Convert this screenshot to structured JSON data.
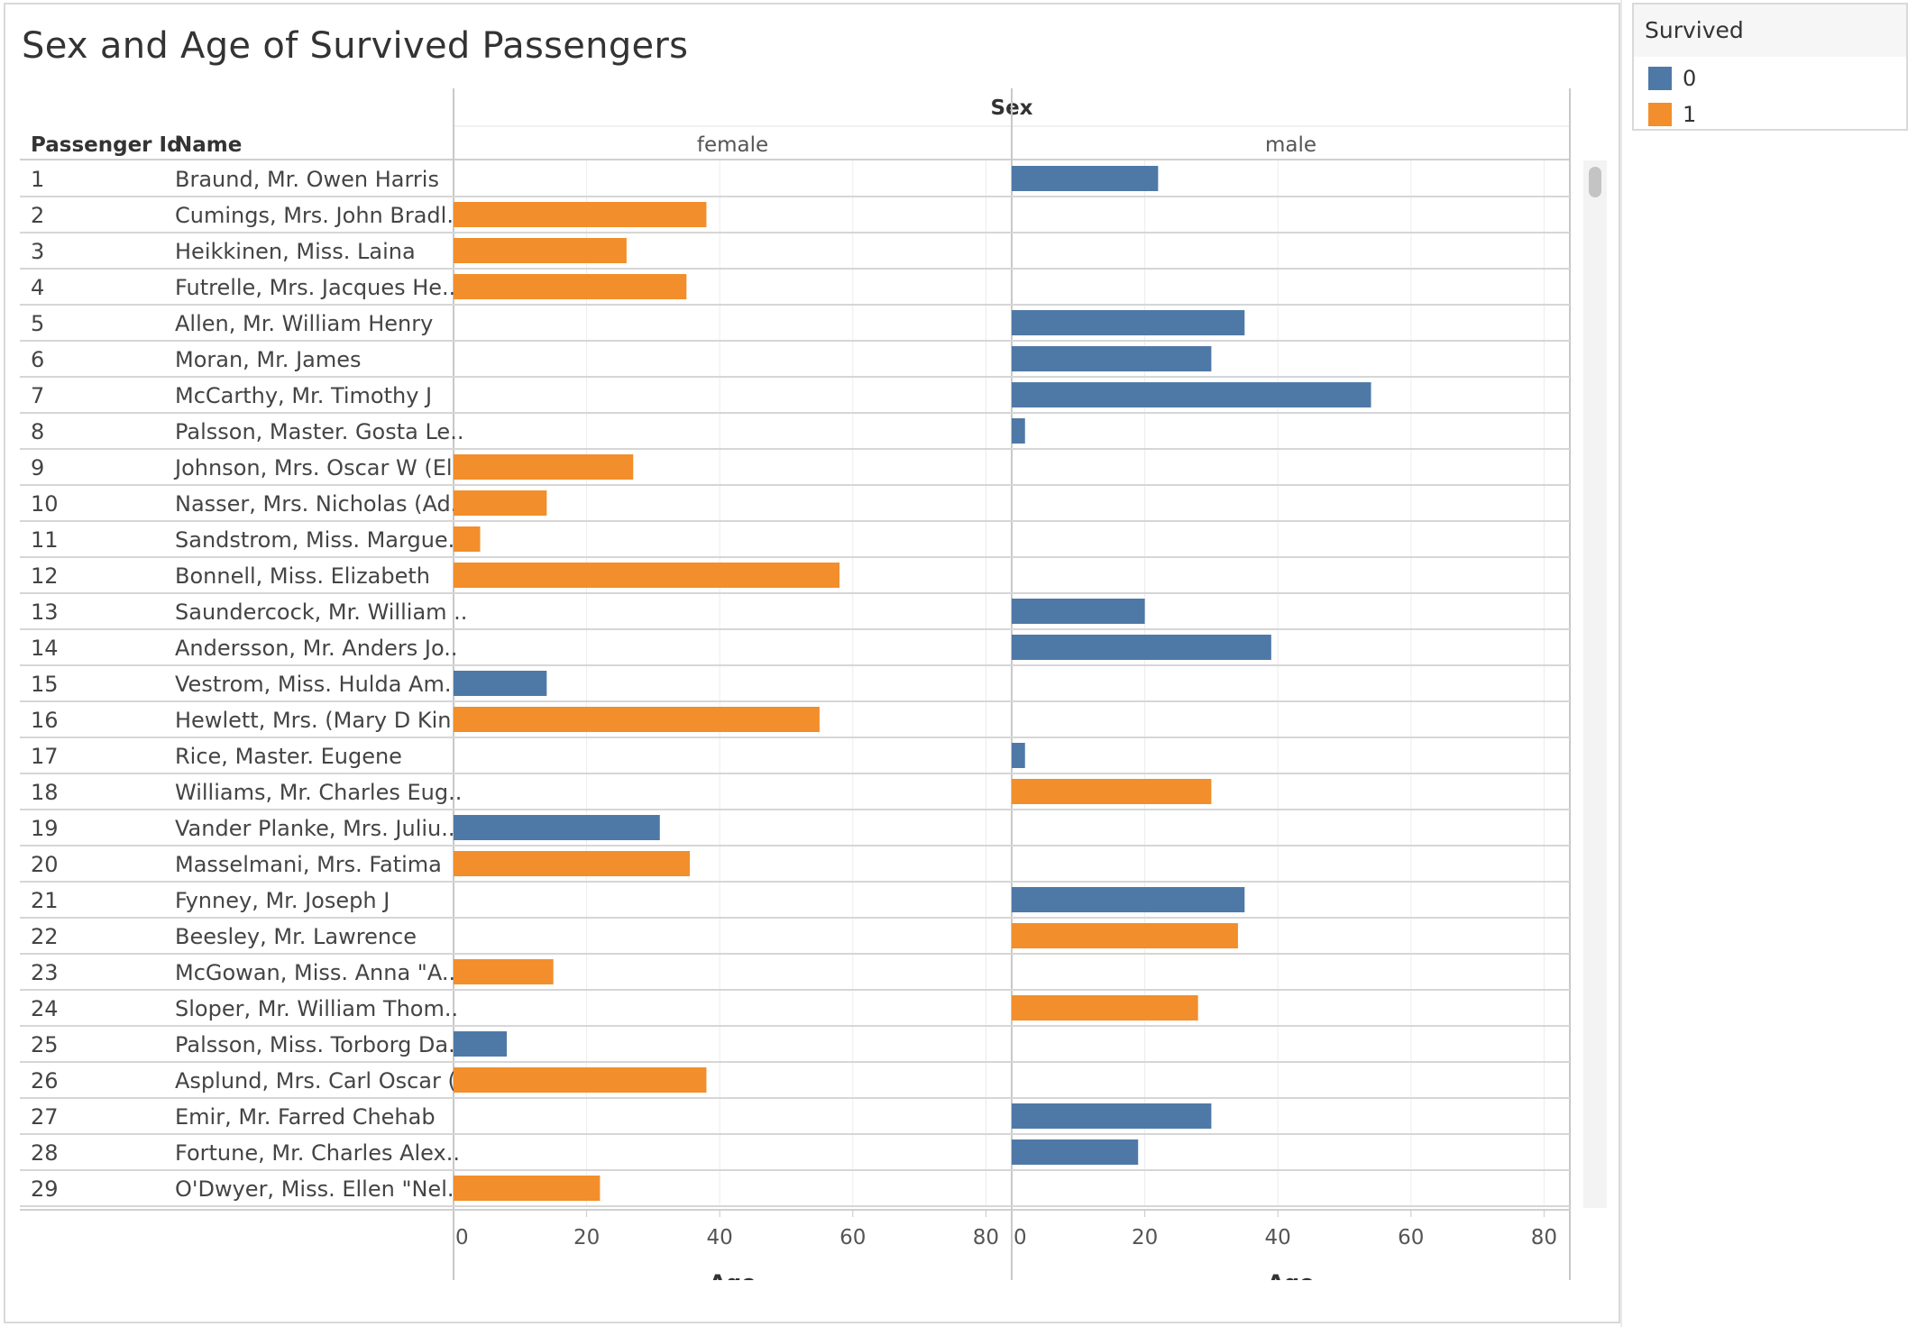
{
  "title": "Sex and Age of Survived Passengers",
  "legend": {
    "title": "Survived",
    "items": [
      {
        "label": "0",
        "color": "#4e79a7"
      },
      {
        "label": "1",
        "color": "#f28e2b"
      }
    ]
  },
  "columns": {
    "passenger_id": "Passenger Id",
    "name": "Name",
    "sex_header": "Sex",
    "female": "female",
    "male": "male"
  },
  "chart_data": {
    "type": "bar",
    "orientation": "horizontal",
    "title": "Sex and Age of Survived Passengers",
    "column_header": "Sex",
    "panels": [
      "female",
      "male"
    ],
    "xlabel": "Age",
    "xlim": [
      0,
      84
    ],
    "xticks": [
      0,
      20,
      40,
      60,
      80
    ],
    "color_by": "Survived",
    "colors": {
      "0": "#4e79a7",
      "1": "#f28e2b"
    },
    "rows": [
      {
        "id": "1",
        "name": "Braund, Mr. Owen Harris",
        "sex": "male",
        "age": 22,
        "survived": 0
      },
      {
        "id": "2",
        "name": "Cumings, Mrs. John Bradl..",
        "sex": "female",
        "age": 38,
        "survived": 1
      },
      {
        "id": "3",
        "name": "Heikkinen, Miss. Laina",
        "sex": "female",
        "age": 26,
        "survived": 1
      },
      {
        "id": "4",
        "name": "Futrelle, Mrs. Jacques He..",
        "sex": "female",
        "age": 35,
        "survived": 1
      },
      {
        "id": "5",
        "name": "Allen, Mr. William Henry",
        "sex": "male",
        "age": 35,
        "survived": 0
      },
      {
        "id": "6",
        "name": "Moran, Mr. James",
        "sex": "male",
        "age": 30,
        "survived": 0
      },
      {
        "id": "7",
        "name": "McCarthy, Mr. Timothy J",
        "sex": "male",
        "age": 54,
        "survived": 0
      },
      {
        "id": "8",
        "name": "Palsson, Master. Gosta Le..",
        "sex": "male",
        "age": 2,
        "survived": 0
      },
      {
        "id": "9",
        "name": "Johnson, Mrs. Oscar W (El..",
        "sex": "female",
        "age": 27,
        "survived": 1
      },
      {
        "id": "10",
        "name": "Nasser, Mrs. Nicholas (Ad..",
        "sex": "female",
        "age": 14,
        "survived": 1
      },
      {
        "id": "11",
        "name": "Sandstrom, Miss. Margue..",
        "sex": "female",
        "age": 4,
        "survived": 1
      },
      {
        "id": "12",
        "name": "Bonnell, Miss. Elizabeth",
        "sex": "female",
        "age": 58,
        "survived": 1
      },
      {
        "id": "13",
        "name": "Saundercock, Mr. William ..",
        "sex": "male",
        "age": 20,
        "survived": 0
      },
      {
        "id": "14",
        "name": "Andersson, Mr. Anders Jo..",
        "sex": "male",
        "age": 39,
        "survived": 0
      },
      {
        "id": "15",
        "name": "Vestrom, Miss. Hulda Am..",
        "sex": "female",
        "age": 14,
        "survived": 0
      },
      {
        "id": "16",
        "name": "Hewlett, Mrs. (Mary D Kin..",
        "sex": "female",
        "age": 55,
        "survived": 1
      },
      {
        "id": "17",
        "name": "Rice, Master. Eugene",
        "sex": "male",
        "age": 2,
        "survived": 0
      },
      {
        "id": "18",
        "name": "Williams, Mr. Charles Eug..",
        "sex": "male",
        "age": 30,
        "survived": 1
      },
      {
        "id": "19",
        "name": "Vander Planke, Mrs. Juliu..",
        "sex": "female",
        "age": 31,
        "survived": 0
      },
      {
        "id": "20",
        "name": "Masselmani, Mrs. Fatima",
        "sex": "female",
        "age": 35.5,
        "survived": 1
      },
      {
        "id": "21",
        "name": "Fynney, Mr. Joseph J",
        "sex": "male",
        "age": 35,
        "survived": 0
      },
      {
        "id": "22",
        "name": "Beesley, Mr. Lawrence",
        "sex": "male",
        "age": 34,
        "survived": 1
      },
      {
        "id": "23",
        "name": "McGowan, Miss. Anna \"A..",
        "sex": "female",
        "age": 15,
        "survived": 1
      },
      {
        "id": "24",
        "name": "Sloper, Mr. William Thom..",
        "sex": "male",
        "age": 28,
        "survived": 1
      },
      {
        "id": "25",
        "name": "Palsson, Miss. Torborg Da..",
        "sex": "female",
        "age": 8,
        "survived": 0
      },
      {
        "id": "26",
        "name": "Asplund, Mrs. Carl Oscar (..",
        "sex": "female",
        "age": 38,
        "survived": 1
      },
      {
        "id": "27",
        "name": "Emir, Mr. Farred Chehab",
        "sex": "male",
        "age": 30,
        "survived": 0
      },
      {
        "id": "28",
        "name": "Fortune, Mr. Charles Alex..",
        "sex": "male",
        "age": 19,
        "survived": 0
      },
      {
        "id": "29",
        "name": "O'Dwyer, Miss. Ellen \"Nel..",
        "sex": "female",
        "age": 22,
        "survived": 1
      }
    ]
  }
}
